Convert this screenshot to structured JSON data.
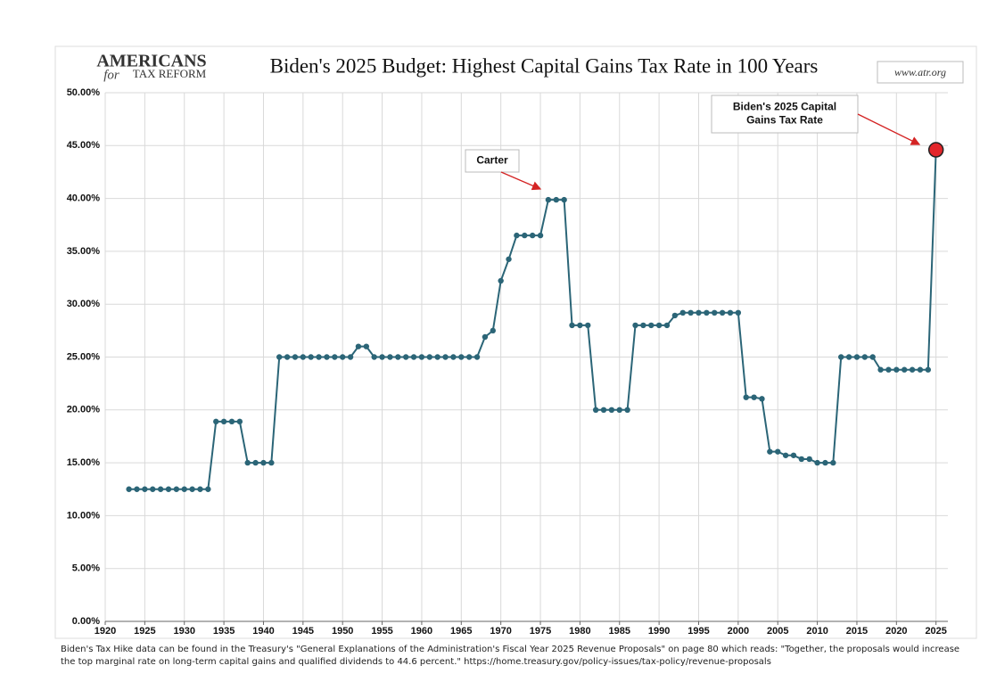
{
  "logo": [
    "AMERICANS",
    "for",
    "TAX REFORM"
  ],
  "website": "www.atr.org",
  "footnote": "Biden's Tax Hike data can be found in the Treasury's \"General Explanations of the Administration's Fiscal Year 2025 Revenue Proposals\" on page 80 which reads: \"Together, the proposals would increase the top marginal rate on long-term capital gains and qualified dividends to 44.6 percent.\"  https://home.treasury.gov/policy-issues/tax-policy/revenue-proposals",
  "chart_data": {
    "type": "line",
    "title": "Biden's 2025 Budget: Highest Capital Gains Tax Rate in 100 Years",
    "annotations": [
      {
        "text": [
          "Carter"
        ]
      },
      {
        "text": [
          "Biden's 2025 Capital",
          "Gains Tax Rate"
        ]
      }
    ],
    "x": [
      1923,
      1924,
      1925,
      1926,
      1927,
      1928,
      1929,
      1930,
      1931,
      1932,
      1933,
      1934,
      1935,
      1936,
      1937,
      1938,
      1939,
      1940,
      1941,
      1942,
      1943,
      1944,
      1945,
      1946,
      1947,
      1948,
      1949,
      1950,
      1951,
      1952,
      1953,
      1954,
      1955,
      1956,
      1957,
      1958,
      1959,
      1960,
      1961,
      1962,
      1963,
      1964,
      1965,
      1966,
      1967,
      1968,
      1969,
      1970,
      1971,
      1972,
      1973,
      1974,
      1975,
      1976,
      1977,
      1978,
      1979,
      1980,
      1981,
      1982,
      1983,
      1984,
      1985,
      1986,
      1987,
      1988,
      1989,
      1990,
      1991,
      1992,
      1993,
      1994,
      1995,
      1996,
      1997,
      1998,
      1999,
      2000,
      2001,
      2002,
      2003,
      2004,
      2005,
      2006,
      2007,
      2008,
      2009,
      2010,
      2011,
      2012,
      2013,
      2014,
      2015,
      2016,
      2017,
      2018,
      2019,
      2020,
      2021,
      2022,
      2023,
      2024,
      2025
    ],
    "series": [
      {
        "color": "#2b6577",
        "highlight_color": "#e3262b",
        "values": [
          12.5,
          12.5,
          12.5,
          12.5,
          12.5,
          12.5,
          12.5,
          12.5,
          12.5,
          12.5,
          12.5,
          18.9,
          18.9,
          18.9,
          18.9,
          15,
          15,
          15,
          15,
          25,
          25,
          25,
          25,
          25,
          25,
          25,
          25,
          25,
          25,
          26,
          26,
          25,
          25,
          25,
          25,
          25,
          25,
          25,
          25,
          25,
          25,
          25,
          25,
          25,
          25,
          26.9,
          27.5,
          32.21,
          34.25,
          36.5,
          36.5,
          36.5,
          36.5,
          39.875,
          39.875,
          39.875,
          28,
          28,
          28,
          20,
          20,
          20,
          20,
          20,
          28,
          28,
          28,
          28,
          28,
          28.93,
          29.19,
          29.19,
          29.19,
          29.19,
          29.19,
          29.19,
          29.19,
          29.19,
          21.19,
          21.19,
          21.05,
          16.05,
          16.05,
          15.7,
          15.7,
          15.35,
          15.35,
          15,
          15,
          15,
          25,
          25,
          25,
          25,
          25,
          23.8,
          23.8,
          23.8,
          23.8,
          23.8,
          23.8,
          23.8,
          44.6
        ]
      }
    ],
    "xlim": [
      1920,
      2026.5
    ],
    "xticks": [
      1920,
      1925,
      1930,
      1935,
      1940,
      1945,
      1950,
      1955,
      1960,
      1965,
      1970,
      1975,
      1980,
      1985,
      1990,
      1995,
      2000,
      2005,
      2010,
      2015,
      2020,
      2025
    ],
    "ylim": [
      0,
      50
    ],
    "yticks": [
      {
        "value": 0,
        "label": "0.00%"
      },
      {
        "value": 5,
        "label": "5.00%"
      },
      {
        "value": 10,
        "label": "10.00%"
      },
      {
        "value": 15,
        "label": "15.00%"
      },
      {
        "value": 20,
        "label": "20.00%"
      },
      {
        "value": 25,
        "label": "25.00%"
      },
      {
        "value": 30,
        "label": "30.00%"
      },
      {
        "value": 35,
        "label": "35.00%"
      },
      {
        "value": 40,
        "label": "40.00%"
      },
      {
        "value": 45,
        "label": "45.00%"
      },
      {
        "value": 50,
        "label": "50.00%"
      }
    ],
    "grid": true
  }
}
